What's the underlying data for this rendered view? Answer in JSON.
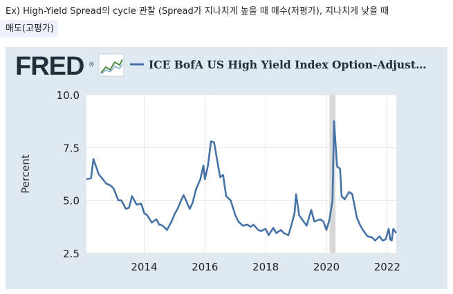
{
  "caption": {
    "line1": "Ex) High-Yield Spread의 cycle 관찰 (Spread가 지나치게 높을 때 매수(저평가), 지나치게 낮을 때",
    "line2": "매도(고평가)"
  },
  "header": {
    "logo_text": "FRED",
    "logo_mark": "®",
    "series_title": "ICE BofA US High Yield Index Option-Adjust…",
    "legend_color": "#4572a7"
  },
  "chart_data": {
    "type": "line",
    "ylabel": "Percent",
    "ylim": [
      2.5,
      10.0
    ],
    "yticks": [
      "2.5",
      "5.0",
      "7.5",
      "10.0"
    ],
    "yticks_values": [
      2.5,
      5.0,
      7.5,
      10.0
    ],
    "xlim": [
      2012.1,
      2022.3
    ],
    "xticks": [
      "2014",
      "2016",
      "2018",
      "2020",
      "2022"
    ],
    "xticks_values": [
      2014,
      2016,
      2018,
      2020,
      2022
    ],
    "recession_shading": [
      2020.1,
      2020.3
    ],
    "line_color": "#4572a7",
    "grid": true,
    "series": [
      {
        "x": [
          2012.1,
          2012.25,
          2012.33,
          2012.5,
          2012.75,
          2012.9,
          2013.0,
          2013.15,
          2013.25,
          2013.4,
          2013.5,
          2013.6,
          2013.75,
          2013.9,
          2014.0,
          2014.1,
          2014.25,
          2014.4,
          2014.5,
          2014.55,
          2014.65,
          2014.75,
          2014.9,
          2015.0,
          2015.1,
          2015.2,
          2015.3,
          2015.5,
          2015.6,
          2015.7,
          2015.85,
          2015.95,
          2016.0,
          2016.1,
          2016.2,
          2016.3,
          2016.5,
          2016.6,
          2016.7,
          2016.85,
          2017.0,
          2017.1,
          2017.25,
          2017.4,
          2017.5,
          2017.6,
          2017.75,
          2017.85,
          2018.0,
          2018.1,
          2018.25,
          2018.35,
          2018.5,
          2018.6,
          2018.75,
          2018.85,
          2018.95,
          2019.0,
          2019.1,
          2019.25,
          2019.35,
          2019.5,
          2019.6,
          2019.7,
          2019.8,
          2019.9,
          2020.0,
          2020.1,
          2020.2,
          2020.25,
          2020.35,
          2020.45,
          2020.5,
          2020.6,
          2020.75,
          2020.85,
          2021.0,
          2021.1,
          2021.2,
          2021.35,
          2021.5,
          2021.6,
          2021.75,
          2021.85,
          2021.95,
          2022.05,
          2022.1,
          2022.15,
          2022.2,
          2022.3
        ],
        "values": [
          6.0,
          6.05,
          6.95,
          6.25,
          5.8,
          5.7,
          5.55,
          5.0,
          5.0,
          4.6,
          4.65,
          5.2,
          4.8,
          4.85,
          4.4,
          4.3,
          3.95,
          4.1,
          3.85,
          3.85,
          3.75,
          3.6,
          4.0,
          4.35,
          4.6,
          4.95,
          5.25,
          4.6,
          4.9,
          5.5,
          6.0,
          6.65,
          6.0,
          6.65,
          7.8,
          7.75,
          6.1,
          6.2,
          5.2,
          5.0,
          4.3,
          4.0,
          3.8,
          3.85,
          3.75,
          3.85,
          3.6,
          3.55,
          3.65,
          3.35,
          3.7,
          3.45,
          3.6,
          3.45,
          3.35,
          3.85,
          4.4,
          5.3,
          4.3,
          4.0,
          3.8,
          4.55,
          4.0,
          4.05,
          4.1,
          4.0,
          3.6,
          4.1,
          5.0,
          8.75,
          6.6,
          6.5,
          5.2,
          5.05,
          5.4,
          5.3,
          4.2,
          3.85,
          3.6,
          3.3,
          3.25,
          3.1,
          3.3,
          3.1,
          3.15,
          3.65,
          3.15,
          3.1,
          3.65,
          3.45
        ]
      }
    ]
  }
}
